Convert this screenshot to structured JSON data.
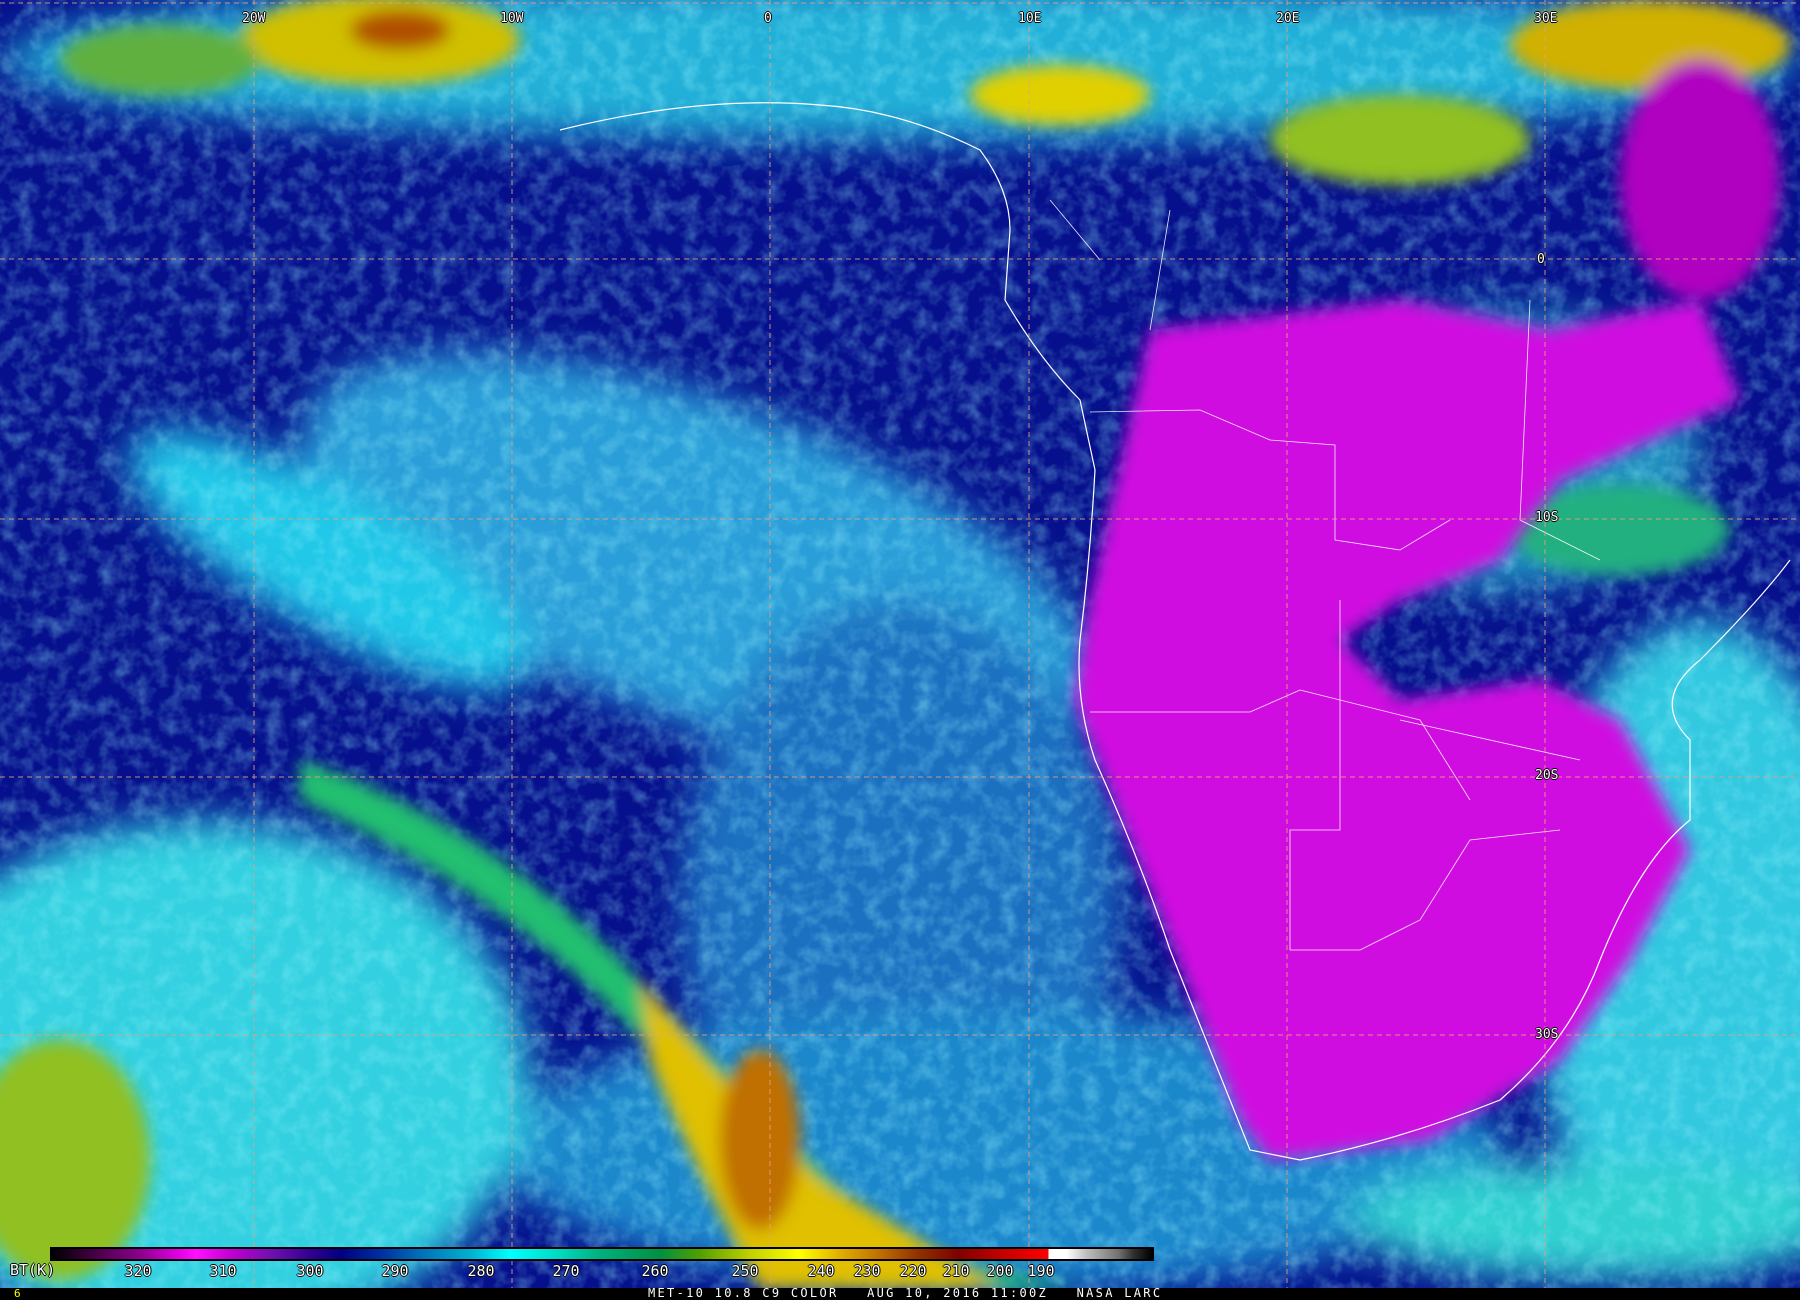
{
  "map": {
    "longitude_labels": [
      "20W",
      "10W",
      "0",
      "10E",
      "20E",
      "30E"
    ],
    "latitude_labels": [
      "0",
      "10S",
      "20S",
      "30S"
    ],
    "grid_color": "#e8a080",
    "coastline_color": "#ffffff"
  },
  "colorbar": {
    "label": "BT(K)",
    "ticks": [
      "320",
      "310",
      "300",
      "290",
      "280",
      "270",
      "260",
      "250",
      "240",
      "230",
      "220",
      "210",
      "200",
      "190"
    ]
  },
  "status": {
    "frame_number": "6",
    "product": "MET-10 10.8 C9 COLOR",
    "datetime": "AUG 10, 2016 11:00Z",
    "credit": "NASA LARC"
  }
}
